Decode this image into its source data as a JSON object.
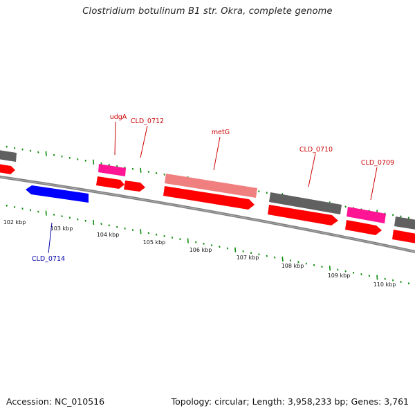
{
  "title": "Clostridium botulinum B1 str. Okra, complete genome",
  "footer": {
    "accession": "Accession: NC_010516",
    "summary": "Topology: circular; Length: 3,958,233 bp; Genes: 3,761"
  },
  "colors": {
    "backbone": "#808080",
    "tick": "#0a8a0a",
    "label_red": "#cc0000",
    "label_blue": "#0000aa",
    "cds": "#ff0000",
    "cds_light": "#f08080",
    "grey": "#606060",
    "pink": "#ff1493",
    "blue": "#0000ff"
  },
  "kbp_labels": [
    "102 kbp",
    "103 kbp",
    "104 kbp",
    "105 kbp",
    "106 kbp",
    "107 kbp",
    "108 kbp",
    "109 kbp",
    "110 kbp"
  ],
  "gene_labels": {
    "udgA": "udgA",
    "cld0712": "CLD_0712",
    "metG": "metG",
    "cld0710": "CLD_0710",
    "cld0709": "CLD_0709",
    "cld0714": "CLD_0714"
  }
}
